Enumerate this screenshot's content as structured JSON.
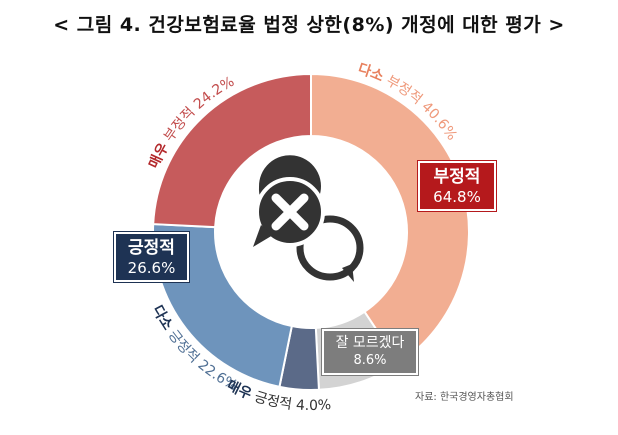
{
  "title": "< 그림 4. 건강보험료율 법정 상한(8%) 개정에 대한 평가 >",
  "source": "자료: 한국경영자총협회",
  "chart_data": {
    "type": "pie",
    "donut": true,
    "slices": [
      {
        "name": "다소 부정적",
        "value": 40.6,
        "color": "#f2ae92"
      },
      {
        "name": "잘 모르겠다",
        "value": 8.6,
        "color": "#d3d3d3"
      },
      {
        "name": "매우 긍정적",
        "value": 4.0,
        "color": "#5b6a88"
      },
      {
        "name": "다소 긍정적",
        "value": 22.6,
        "color": "#6e94bc"
      },
      {
        "name": "매우 부정적",
        "value": 24.2,
        "color": "#c65b5c"
      }
    ],
    "arc_labels": [
      {
        "strong": "다소",
        "rest": " 부정적 40.6%",
        "color": "#ef9a7c",
        "strong_color": "#e8805d"
      },
      {
        "strong": "매우",
        "rest": " 부정적 24.2%",
        "color": "#c24c4c",
        "strong_color": "#b3282b"
      },
      {
        "strong": "다소",
        "rest": " 긍정적 22.6%",
        "color": "#4f6f94",
        "strong_color": "#1e3354"
      },
      {
        "strong": "매우",
        "rest": " 긍정적 4.0%",
        "color": "#333333",
        "strong_color": "#1e3354"
      }
    ],
    "group_boxes": {
      "negative": {
        "label": "부정적",
        "value": "64.8%",
        "color": "#b5191c"
      },
      "positive": {
        "label": "긍정적",
        "value": "26.6%",
        "color": "#1e3354"
      },
      "unknown": {
        "label": "잘 모르겠다",
        "value": "8.6%",
        "color": "#7d7d7d"
      }
    },
    "center_icon": "speech-bubbles-x-icon"
  }
}
